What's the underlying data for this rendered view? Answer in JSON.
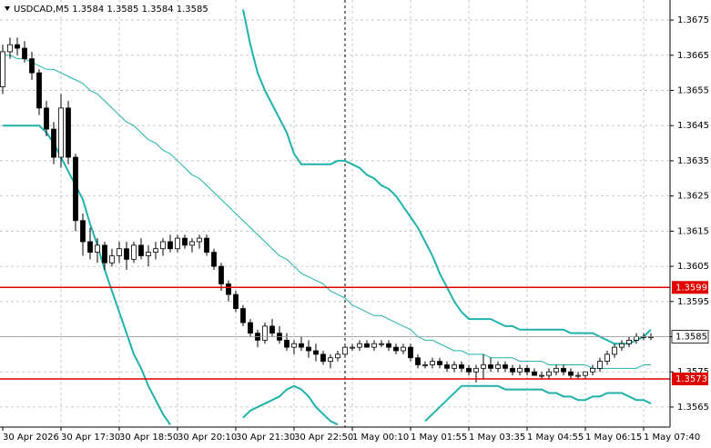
{
  "chart_data": {
    "type": "candlestick",
    "title": "USDCAD,M5 1.3584 1.3585 1.3584 1.3585",
    "categories": [
      "30 Apr 2026",
      null,
      null,
      null,
      null,
      null,
      null,
      null,
      "30 Apr 17:30",
      null,
      null,
      null,
      null,
      null,
      null,
      null,
      "30 Apr 18:50",
      null,
      null,
      null,
      null,
      null,
      null,
      null,
      "30 Apr 20:10",
      null,
      null,
      null,
      null,
      null,
      null,
      null,
      "30 Apr 21:30",
      null,
      null,
      null,
      null,
      null,
      null,
      null,
      "30 Apr 22:50",
      null,
      null,
      null,
      null,
      null,
      null,
      null,
      "1 May 00:10",
      null,
      null,
      null,
      null,
      null,
      null,
      null,
      "1 May 01:55",
      null,
      null,
      null,
      null,
      null,
      null,
      null,
      "1 May 03:35",
      null,
      null,
      null,
      null,
      null,
      null,
      null,
      "1 May 04:55",
      null,
      null,
      null,
      null,
      null,
      null,
      null,
      "1 May 06:15",
      null,
      null,
      null,
      null,
      null,
      null,
      null,
      "1 May 07:40",
      null
    ],
    "open": [
      1.3656,
      1.3666,
      1.3668,
      1.3667,
      1.3664,
      1.366,
      1.365,
      1.3644,
      1.3636,
      1.365,
      1.3636,
      1.3618,
      1.3612,
      1.3609,
      1.3611,
      1.3606,
      1.3608,
      1.361,
      1.3607,
      1.3611,
      1.3608,
      1.3609,
      1.361,
      1.3612,
      1.361,
      1.3613,
      1.3611,
      1.3612,
      1.3613,
      1.3609,
      1.3605,
      1.36,
      1.3597,
      1.3593,
      1.3589,
      1.3586,
      1.3584,
      1.3588,
      1.3586,
      1.3584,
      1.3582,
      1.3583,
      1.3582,
      1.3581,
      1.358,
      1.3578,
      1.3579,
      1.358,
      1.3582,
      1.3582,
      1.3583,
      1.3582,
      1.3583,
      1.3583,
      1.3582,
      1.3581,
      1.3582,
      1.3579,
      1.3577,
      1.3577,
      1.3578,
      1.3577,
      1.3576,
      1.3577,
      1.3576,
      1.3575,
      1.3576,
      1.3577,
      1.3576,
      1.3577,
      1.3576,
      1.3575,
      1.3576,
      1.3575,
      1.3574,
      1.3574,
      1.3575,
      1.3576,
      1.3575,
      1.3574,
      1.3574,
      1.3575,
      1.3576,
      1.3578,
      1.358,
      1.3582,
      1.3583,
      1.3584,
      1.3585,
      1.3585
    ],
    "high": [
      1.3668,
      1.367,
      1.367,
      1.3669,
      1.3666,
      1.3661,
      1.3652,
      1.3646,
      1.3654,
      1.3652,
      1.3637,
      1.362,
      1.3616,
      1.3613,
      1.3612,
      1.361,
      1.3612,
      1.3612,
      1.3612,
      1.3613,
      1.3611,
      1.3612,
      1.3613,
      1.3614,
      1.3614,
      1.3614,
      1.3613,
      1.3614,
      1.3614,
      1.361,
      1.3606,
      1.3601,
      1.3598,
      1.3594,
      1.359,
      1.3587,
      1.3589,
      1.359,
      1.3588,
      1.3586,
      1.3584,
      1.3585,
      1.3584,
      1.3583,
      1.3581,
      1.358,
      1.3581,
      1.3583,
      1.3583,
      1.3584,
      1.3584,
      1.3584,
      1.3584,
      1.3584,
      1.3583,
      1.3583,
      1.3583,
      1.358,
      1.3578,
      1.3579,
      1.3579,
      1.3578,
      1.3578,
      1.3578,
      1.3577,
      1.3577,
      1.358,
      1.3579,
      1.3578,
      1.3578,
      1.3577,
      1.3577,
      1.3577,
      1.3576,
      1.3575,
      1.3576,
      1.3577,
      1.3577,
      1.3576,
      1.3575,
      1.3575,
      1.3577,
      1.3579,
      1.3581,
      1.3583,
      1.3584,
      1.3585,
      1.3586,
      1.3586,
      1.3586
    ],
    "low": [
      1.3654,
      1.3664,
      1.3665,
      1.3663,
      1.3658,
      1.3648,
      1.3642,
      1.3634,
      1.3633,
      1.3634,
      1.3615,
      1.3608,
      1.3607,
      1.3606,
      1.3604,
      1.3605,
      1.3606,
      1.3604,
      1.3606,
      1.3607,
      1.3605,
      1.3607,
      1.3608,
      1.3609,
      1.3609,
      1.361,
      1.3609,
      1.361,
      1.3608,
      1.3604,
      1.3598,
      1.3595,
      1.3592,
      1.3588,
      1.3585,
      1.3582,
      1.3583,
      1.3585,
      1.3583,
      1.3581,
      1.358,
      1.3581,
      1.3579,
      1.3578,
      1.3577,
      1.3576,
      1.3578,
      1.3579,
      1.3581,
      1.3581,
      1.3582,
      1.3581,
      1.3582,
      1.3581,
      1.358,
      1.358,
      1.3578,
      1.3576,
      1.3576,
      1.3576,
      1.3576,
      1.3575,
      1.3575,
      1.3575,
      1.3574,
      1.3572,
      1.3573,
      1.3575,
      1.3575,
      1.3575,
      1.3574,
      1.3574,
      1.3574,
      1.3574,
      1.3573,
      1.3573,
      1.3574,
      1.3574,
      1.3573,
      1.3573,
      1.3573,
      1.3574,
      1.3575,
      1.3577,
      1.3579,
      1.3581,
      1.3582,
      1.3583,
      1.3584,
      1.3584
    ],
    "close": [
      1.3666,
      1.3668,
      1.3667,
      1.3664,
      1.366,
      1.365,
      1.3644,
      1.3636,
      1.365,
      1.3636,
      1.3618,
      1.3612,
      1.3609,
      1.3611,
      1.3606,
      1.3608,
      1.361,
      1.3607,
      1.3611,
      1.3608,
      1.3609,
      1.361,
      1.3612,
      1.361,
      1.3613,
      1.3611,
      1.3612,
      1.3613,
      1.3609,
      1.3605,
      1.36,
      1.3597,
      1.3593,
      1.3589,
      1.3586,
      1.3584,
      1.3588,
      1.3586,
      1.3584,
      1.3582,
      1.3583,
      1.3582,
      1.3581,
      1.358,
      1.3578,
      1.3579,
      1.358,
      1.3582,
      1.3582,
      1.3583,
      1.3582,
      1.3583,
      1.3583,
      1.3582,
      1.3581,
      1.3582,
      1.3579,
      1.3577,
      1.3577,
      1.3578,
      1.3577,
      1.3576,
      1.3577,
      1.3576,
      1.3575,
      1.3576,
      1.3577,
      1.3576,
      1.3577,
      1.3576,
      1.3575,
      1.3576,
      1.3575,
      1.3574,
      1.3574,
      1.3575,
      1.3576,
      1.3575,
      1.3574,
      1.3574,
      1.3575,
      1.3576,
      1.3578,
      1.358,
      1.3582,
      1.3583,
      1.3584,
      1.3585,
      1.3585,
      1.3585
    ],
    "up_color": "#ffffff",
    "down_color": "#000000",
    "candle_stroke": "#000000",
    "bands": {
      "color": "#20b2aa",
      "upper": [
        null,
        null,
        null,
        null,
        null,
        null,
        null,
        null,
        null,
        null,
        null,
        null,
        null,
        null,
        null,
        null,
        null,
        null,
        null,
        null,
        null,
        null,
        null,
        null,
        null,
        null,
        null,
        null,
        null,
        null,
        null,
        null,
        null,
        1.3678,
        1.3668,
        1.366,
        1.3655,
        1.3651,
        1.3647,
        1.3643,
        1.3637,
        1.3634,
        1.3634,
        1.3634,
        1.3634,
        1.3634,
        1.3635,
        1.3635,
        1.3634,
        1.3633,
        1.3631,
        1.363,
        1.3628,
        1.3627,
        1.3625,
        1.3622,
        1.3619,
        1.3616,
        1.3612,
        1.3608,
        1.3603,
        1.3599,
        1.3595,
        1.3592,
        1.359,
        1.359,
        1.359,
        1.359,
        1.3589,
        1.3588,
        1.3588,
        1.3587,
        1.3587,
        1.3587,
        1.3587,
        1.3587,
        1.3587,
        1.3587,
        1.3586,
        1.3586,
        1.3586,
        1.3586,
        1.3585,
        1.3584,
        1.3583,
        1.3583,
        1.3583,
        1.3584,
        1.3585,
        1.3587
      ],
      "middle": [
        1.3665,
        1.3665,
        1.3664,
        1.3664,
        1.3663,
        1.3662,
        1.3661,
        1.3661,
        1.366,
        1.3659,
        1.3658,
        1.3657,
        1.3655,
        1.3654,
        1.3652,
        1.365,
        1.3648,
        1.3646,
        1.3645,
        1.3643,
        1.3641,
        1.364,
        1.3638,
        1.3637,
        1.3635,
        1.3633,
        1.3631,
        1.363,
        1.3628,
        1.3626,
        1.3624,
        1.3622,
        1.362,
        1.3618,
        1.3616,
        1.3614,
        1.3612,
        1.361,
        1.3608,
        1.3607,
        1.3605,
        1.3603,
        1.3602,
        1.3601,
        1.36,
        1.3598,
        1.3597,
        1.3596,
        1.3594,
        1.3593,
        1.3592,
        1.3591,
        1.3591,
        1.359,
        1.3589,
        1.3588,
        1.3587,
        1.3585,
        1.3584,
        1.3584,
        1.3583,
        1.3582,
        1.3581,
        1.3581,
        1.358,
        1.358,
        1.358,
        1.3579,
        1.3579,
        1.3579,
        1.3579,
        1.3578,
        1.3578,
        1.3578,
        1.3578,
        1.3577,
        1.3577,
        1.3577,
        1.3577,
        1.3577,
        1.3577,
        1.3576,
        1.3576,
        1.3576,
        1.3576,
        1.3576,
        1.3576,
        1.3576,
        1.3577,
        1.3577
      ],
      "lower": [
        1.3645,
        1.3645,
        1.3645,
        1.3645,
        1.3645,
        1.3645,
        1.3643,
        1.364,
        1.3636,
        1.3632,
        1.3628,
        1.3624,
        1.3617,
        1.3611,
        1.3604,
        1.3598,
        1.3592,
        1.3586,
        1.358,
        1.3576,
        1.3571,
        1.3567,
        1.3563,
        1.356,
        null,
        null,
        null,
        null,
        null,
        null,
        null,
        null,
        null,
        1.3562,
        1.3564,
        1.3565,
        1.3566,
        1.3567,
        1.3568,
        1.357,
        1.3571,
        1.357,
        1.3568,
        1.3565,
        1.3563,
        1.3561,
        1.356,
        null,
        null,
        null,
        null,
        null,
        null,
        null,
        null,
        null,
        null,
        null,
        1.3561,
        1.3563,
        1.3565,
        1.3567,
        1.3569,
        1.3571,
        1.3571,
        1.3571,
        1.3571,
        1.3571,
        1.3571,
        1.357,
        1.357,
        1.357,
        1.357,
        1.357,
        1.357,
        1.3569,
        1.3569,
        1.3568,
        1.3568,
        1.3567,
        1.3567,
        1.3568,
        1.3568,
        1.3569,
        1.3569,
        1.3569,
        1.3568,
        1.3567,
        1.3567,
        1.3566
      ]
    },
    "levels": [
      1.3599,
      1.3573
    ],
    "level_color": "#e00000",
    "current_price": 1.3585,
    "ylim": [
      1.35593,
      1.36807
    ],
    "yticks": [
      1.3675,
      1.3665,
      1.3655,
      1.3645,
      1.3635,
      1.3625,
      1.3615,
      1.3605,
      1.3595,
      1.3585,
      1.3575,
      1.3565
    ],
    "grid": true
  }
}
